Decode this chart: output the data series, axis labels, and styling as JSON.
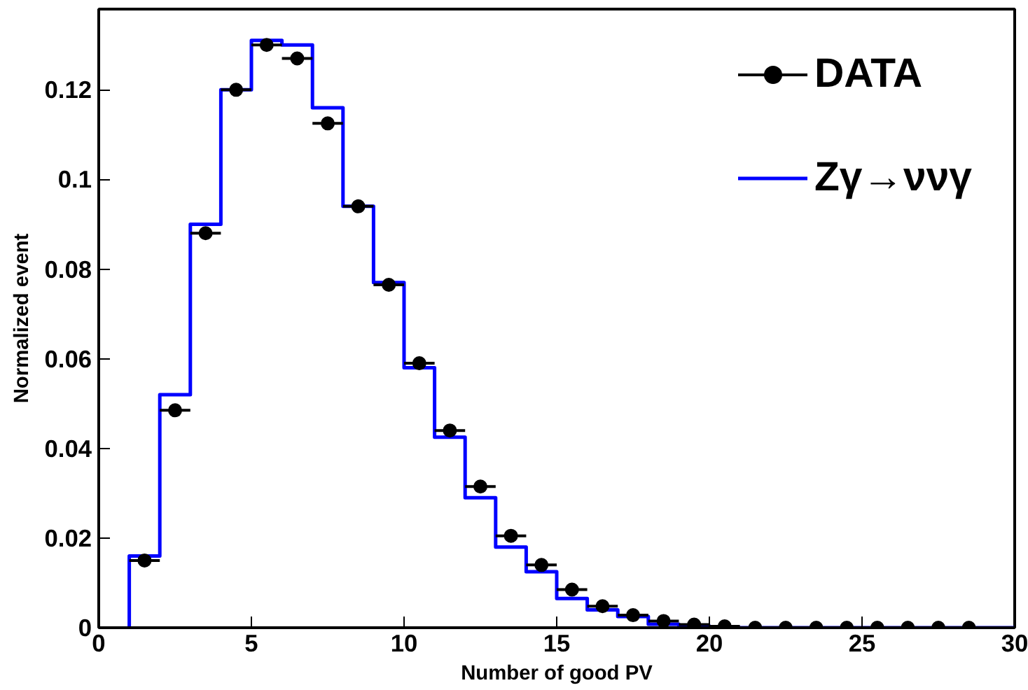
{
  "chart_data": {
    "type": "histogram",
    "xlabel": "Number of good PV",
    "ylabel": "Normalized event",
    "bins": [
      1,
      2,
      3,
      4,
      5,
      6,
      7,
      8,
      9,
      10,
      11,
      12,
      13,
      14,
      15,
      16,
      17,
      18,
      19,
      20,
      21,
      22,
      23,
      24,
      25,
      26,
      27,
      28,
      29,
      30
    ],
    "series": [
      {
        "name": "DATA",
        "type": "scatter",
        "color": "#000000",
        "x": [
          1.5,
          2.5,
          3.5,
          4.5,
          5.5,
          6.5,
          7.5,
          8.5,
          9.5,
          10.5,
          11.5,
          12.5,
          13.5,
          14.5,
          15.5,
          16.5,
          17.5,
          18.5,
          19.5,
          20.5,
          21.5,
          22.5,
          23.5,
          24.5,
          25.5,
          26.5,
          27.5,
          28.5
        ],
        "values": [
          0.015,
          0.0485,
          0.088,
          0.12,
          0.13,
          0.127,
          0.1125,
          0.094,
          0.0765,
          0.059,
          0.044,
          0.0315,
          0.0205,
          0.014,
          0.0085,
          0.0048,
          0.0028,
          0.0015,
          0.0007,
          0.0003,
          0,
          0,
          0,
          0,
          0,
          0,
          0,
          0
        ],
        "xerrors": [
          0.5,
          0.5,
          0.5,
          0.5,
          0.5,
          0.5,
          0.5,
          0.5,
          0.5,
          0.5,
          0.5,
          0.5,
          0.5,
          0.5,
          0.5,
          0.5,
          0.5,
          0.5,
          0.5,
          0.5,
          0.5,
          0.5,
          0.5,
          0.5,
          0.5,
          0.5,
          0.5,
          0.5
        ]
      },
      {
        "name": "Zγ→ννγ",
        "color": "#0000ff",
        "values": [
          0.016,
          0.052,
          0.09,
          0.12,
          0.131,
          0.13,
          0.116,
          0.094,
          0.077,
          0.058,
          0.0425,
          0.029,
          0.018,
          0.0125,
          0.0065,
          0.004,
          0.0025,
          0.0008,
          0.0004,
          0,
          0,
          0,
          0,
          0,
          0,
          0,
          0,
          0,
          0
        ]
      }
    ],
    "xlim": [
      0,
      30
    ],
    "ylim": [
      0,
      0.138
    ],
    "xticks": [
      0,
      5,
      10,
      15,
      20,
      25,
      30
    ],
    "yticks": [
      0,
      0.02,
      0.04,
      0.06,
      0.08,
      0.1,
      0.12
    ],
    "grid": false,
    "legend": "top right",
    "marker": "circle"
  }
}
